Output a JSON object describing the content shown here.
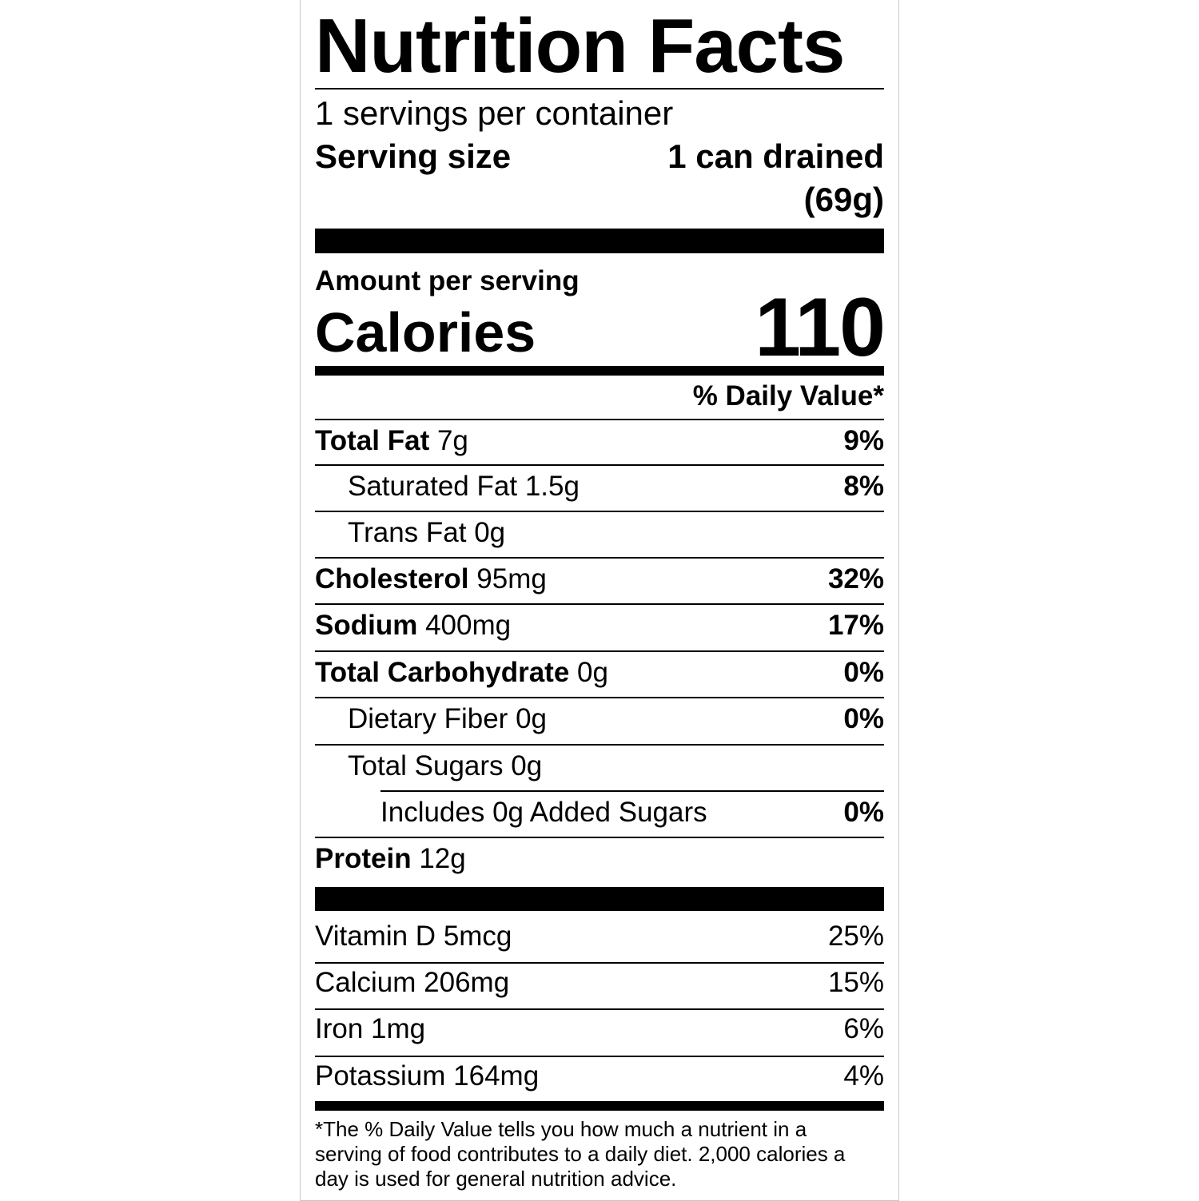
{
  "title": "Nutrition Facts",
  "servings_per_container": "1 servings per container",
  "serving_size_label": "Serving size",
  "serving_size_value": "1 can drained",
  "serving_size_weight": "(69g)",
  "amount_per_serving": "Amount per serving",
  "calories_label": "Calories",
  "calories_value": "110",
  "daily_value_header": "% Daily Value*",
  "nutrients": [
    {
      "name": "Total Fat",
      "amount": "7g",
      "dv": "9%"
    },
    {
      "name": "Saturated Fat",
      "amount": "1.5g",
      "dv": "8%"
    },
    {
      "name": "Trans Fat",
      "amount": "0g",
      "dv": ""
    },
    {
      "name": "Cholesterol",
      "amount": "95mg",
      "dv": "32%"
    },
    {
      "name": "Sodium",
      "amount": "400mg",
      "dv": "17%"
    },
    {
      "name": "Total Carbohydrate",
      "amount": "0g",
      "dv": "0%"
    },
    {
      "name": "Dietary Fiber",
      "amount": "0g",
      "dv": "0%"
    },
    {
      "name": "Total Sugars",
      "amount": "0g",
      "dv": ""
    },
    {
      "name": "Includes 0g Added Sugars",
      "amount": "",
      "dv": "0%"
    },
    {
      "name": "Protein",
      "amount": "12g",
      "dv": ""
    }
  ],
  "vitamins": [
    {
      "name": "Vitamin D",
      "amount": "5mcg",
      "dv": "25%"
    },
    {
      "name": "Calcium",
      "amount": "206mg",
      "dv": "15%"
    },
    {
      "name": "Iron",
      "amount": "1mg",
      "dv": "6%"
    },
    {
      "name": "Potassium",
      "amount": "164mg",
      "dv": "4%"
    }
  ],
  "footnote_lines": [
    "*The % Daily Value tells you how much a nutrient in a",
    "serving of food contributes to a daily diet. 2,000 calories a",
    "day is used for general nutrition advice."
  ]
}
